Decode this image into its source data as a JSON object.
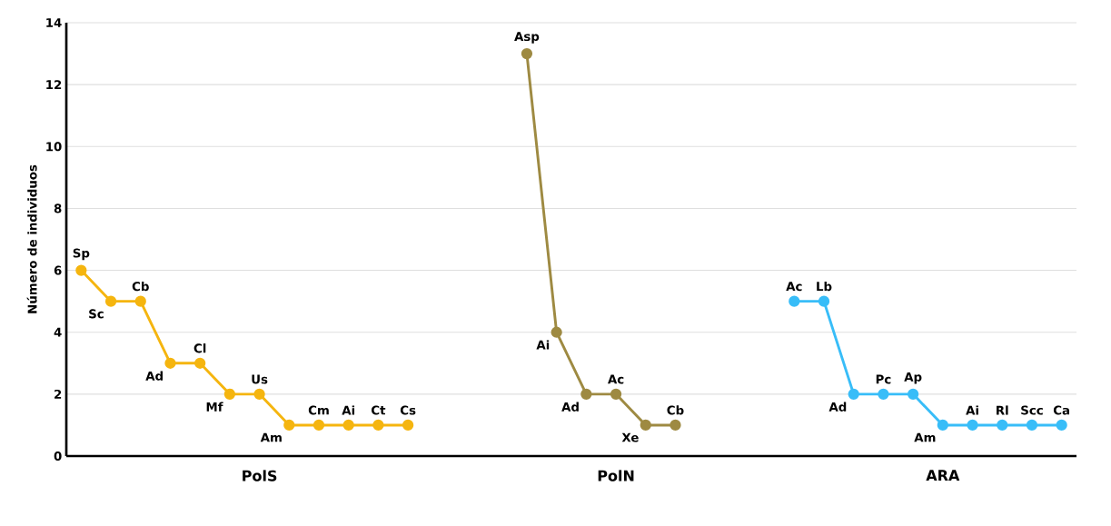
{
  "chart_data": {
    "type": "line",
    "ylabel": "Número de individuos",
    "categories": [
      null,
      null,
      null,
      null,
      null,
      null,
      "PolS",
      null,
      null,
      null,
      null,
      null,
      null,
      null,
      null,
      null,
      null,
      null,
      "PolN",
      null,
      null,
      null,
      null,
      null,
      null,
      null,
      null,
      null,
      null,
      "ARA",
      null,
      null,
      null,
      null
    ],
    "ylim": [
      0,
      14
    ],
    "yticks": [
      0,
      2,
      4,
      6,
      8,
      10,
      12,
      14
    ],
    "grid": "y",
    "marker": "circle",
    "line_style": "solid",
    "series": [
      {
        "color": "#f5b50f",
        "values": [
          6,
          5,
          5,
          3,
          3,
          2,
          2,
          1,
          1,
          1,
          1,
          1,
          null,
          null,
          null,
          null,
          null,
          null,
          null,
          null,
          null,
          null,
          null,
          null,
          null,
          null,
          null,
          null,
          null,
          null,
          null,
          null,
          null,
          null
        ],
        "value_labels": [
          "Sp",
          "Sc",
          "Cb",
          "Ad",
          "Cl",
          "Mf",
          "Us",
          "Am",
          "Cm",
          "Ai",
          "Ct",
          "Cs",
          null,
          null,
          null,
          null,
          null,
          null,
          null,
          null,
          null,
          null,
          null,
          null,
          null,
          null,
          null,
          null,
          null,
          null,
          null,
          null,
          null,
          null
        ]
      },
      {
        "color": "#9e8a42",
        "values": [
          null,
          null,
          null,
          null,
          null,
          null,
          null,
          null,
          null,
          null,
          null,
          null,
          null,
          null,
          null,
          13,
          4,
          2,
          2,
          1,
          1,
          null,
          null,
          null,
          null,
          null,
          null,
          null,
          null,
          null,
          null,
          null,
          null,
          null
        ],
        "value_labels": [
          null,
          null,
          null,
          null,
          null,
          null,
          null,
          null,
          null,
          null,
          null,
          null,
          null,
          null,
          null,
          "Asp",
          "Ai",
          "Ad",
          "Ac",
          "Xe",
          "Cb",
          null,
          null,
          null,
          null,
          null,
          null,
          null,
          null,
          null,
          null,
          null,
          null,
          null
        ]
      },
      {
        "color": "#38bdf8",
        "values": [
          null,
          null,
          null,
          null,
          null,
          null,
          null,
          null,
          null,
          null,
          null,
          null,
          null,
          null,
          null,
          null,
          null,
          null,
          null,
          null,
          null,
          null,
          null,
          null,
          5,
          5,
          2,
          2,
          2,
          1,
          1,
          1,
          1,
          1
        ],
        "value_labels": [
          null,
          null,
          null,
          null,
          null,
          null,
          null,
          null,
          null,
          null,
          null,
          null,
          null,
          null,
          null,
          null,
          null,
          null,
          null,
          null,
          null,
          null,
          null,
          null,
          "Ac",
          "Lb",
          "Ad",
          "Pc",
          "Ap",
          "Am",
          "Ai",
          "Rl",
          "Scc",
          "Ca"
        ]
      }
    ]
  }
}
